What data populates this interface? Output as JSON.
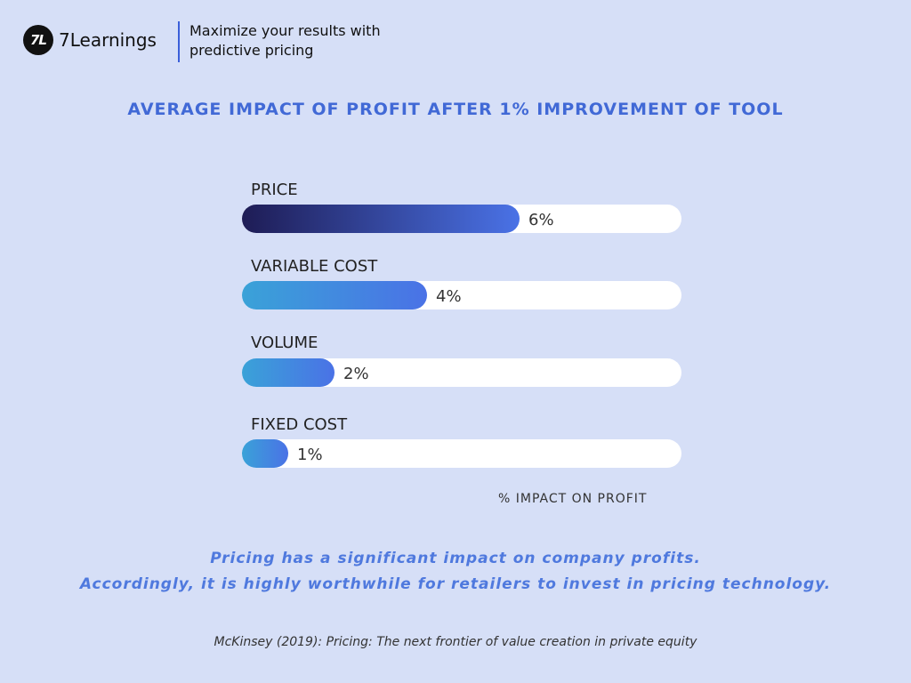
{
  "header": {
    "logo_text": "7L",
    "brand_name": "7Learnings",
    "tagline_line1": "Maximize your results with",
    "tagline_line2": "predictive pricing"
  },
  "chart_data": {
    "type": "bar",
    "orientation": "horizontal",
    "title": "AVERAGE IMPACT OF PROFIT AFTER 1% IMPROVEMENT OF TOOL",
    "xlabel": "% IMPACT ON PROFIT",
    "ylabel": "",
    "categories": [
      "PRICE",
      "VARIABLE COST",
      "VOLUME",
      "FIXED COST"
    ],
    "values": [
      6,
      4,
      2,
      1
    ],
    "value_labels": [
      "6%",
      "4%",
      "2%",
      "1%"
    ],
    "xlim": [
      0,
      10
    ],
    "grid": false,
    "legend": "none",
    "colors": {
      "track": "#ffffff",
      "bar_gradients": [
        [
          "#1e1c55",
          "#4a72e6"
        ],
        [
          "#3aa2d8",
          "#4a72e6"
        ],
        [
          "#3aa2d8",
          "#4a72e6"
        ],
        [
          "#3aa2d8",
          "#4a72e6"
        ]
      ]
    }
  },
  "footer": {
    "takeaway_line1": "Pricing has a significant impact on company profits.",
    "takeaway_line2": "Accordingly, it is highly worthwhile for retailers to invest in pricing technology.",
    "source": "McKinsey (2019): Pricing: The next frontier of value creation in private equity"
  }
}
